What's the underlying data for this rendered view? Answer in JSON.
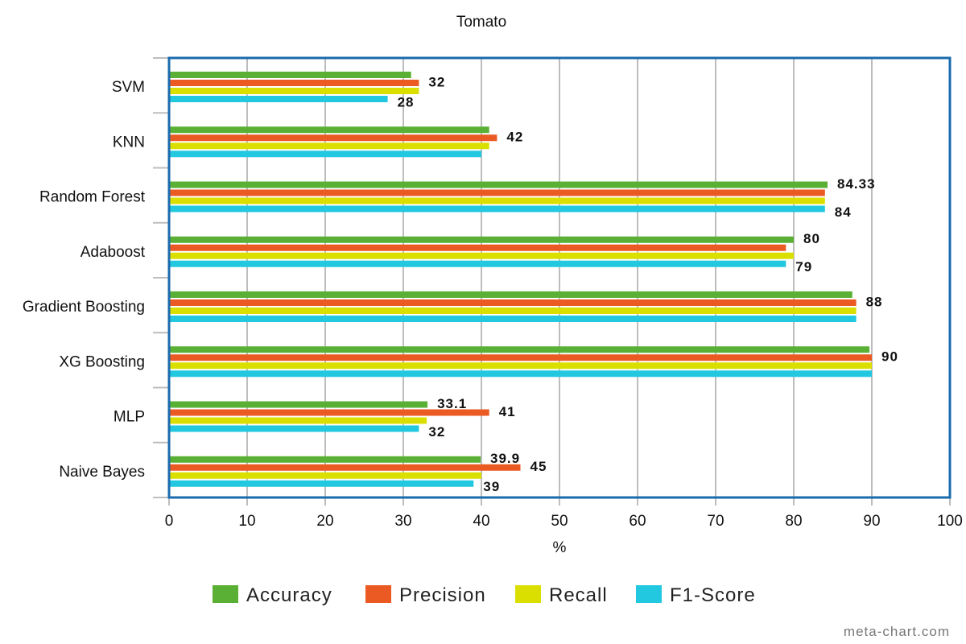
{
  "chart_data": {
    "type": "bar",
    "orientation": "horizontal",
    "title": "Tomato",
    "xlabel": "%",
    "ylabel": "",
    "xlim": [
      0,
      100
    ],
    "xticks": [
      "0",
      "10",
      "20",
      "30",
      "40",
      "50",
      "60",
      "70",
      "80",
      "90",
      "100"
    ],
    "grid": true,
    "legend_position": "bottom",
    "categories": [
      "SVM",
      "KNN",
      "Random Forest",
      "Adaboost",
      "Gradient Boosting",
      "XG Boosting",
      "MLP",
      "Naive Bayes"
    ],
    "series": [
      {
        "name": "Accuracy",
        "color": "#5ab034",
        "values": [
          31,
          41,
          84.33,
          80,
          87.5,
          89.7,
          33.1,
          39.9
        ]
      },
      {
        "name": "Precision",
        "color": "#ea5a22",
        "values": [
          32,
          42,
          84,
          79,
          88,
          90,
          41,
          45
        ]
      },
      {
        "name": "Recall",
        "color": "#dbdf00",
        "values": [
          32,
          41,
          84,
          80,
          88,
          90,
          33,
          40
        ]
      },
      {
        "name": "F1-Score",
        "color": "#22c8df",
        "values": [
          28,
          40,
          84,
          79,
          88,
          90,
          32,
          39
        ]
      }
    ],
    "data_labels": [
      {
        "category": 0,
        "series": 1,
        "text": "32"
      },
      {
        "category": 0,
        "series": 3,
        "text": "28"
      },
      {
        "category": 1,
        "series": 1,
        "text": "42"
      },
      {
        "category": 2,
        "series": 0,
        "text": "84.33"
      },
      {
        "category": 2,
        "series": 3,
        "text": "84"
      },
      {
        "category": 3,
        "series": 0,
        "text": "80"
      },
      {
        "category": 3,
        "series": 3,
        "text": "79"
      },
      {
        "category": 4,
        "series": 1,
        "text": "88"
      },
      {
        "category": 5,
        "series": 1,
        "text": "90"
      },
      {
        "category": 6,
        "series": 0,
        "text": "33.1"
      },
      {
        "category": 6,
        "series": 1,
        "text": "41"
      },
      {
        "category": 6,
        "series": 3,
        "text": "32"
      },
      {
        "category": 7,
        "series": 0,
        "text": "39.9"
      },
      {
        "category": 7,
        "series": 1,
        "text": "45"
      },
      {
        "category": 7,
        "series": 3,
        "text": "39"
      }
    ],
    "frame_color": "#1a6aae"
  },
  "credit": "meta-chart.com"
}
